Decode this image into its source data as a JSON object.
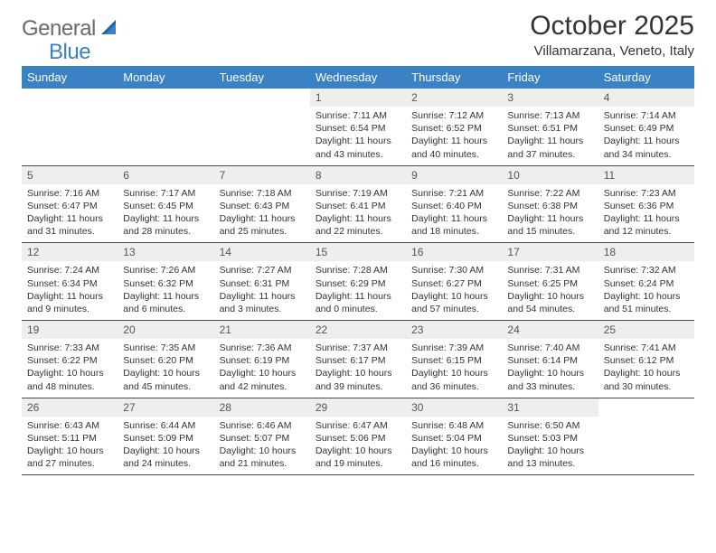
{
  "logo": {
    "general": "General",
    "blue": "Blue"
  },
  "title": "October 2025",
  "location": "Villamarzana, Veneto, Italy",
  "colors": {
    "header_bg": "#3a82c4",
    "header_fg": "#ffffff",
    "daynum_bg": "#eeeeee",
    "rule": "#4a4a4a",
    "page_bg": "#ffffff"
  },
  "weekdays": [
    "Sunday",
    "Monday",
    "Tuesday",
    "Wednesday",
    "Thursday",
    "Friday",
    "Saturday"
  ],
  "weeks": [
    [
      {
        "n": "",
        "sr": "",
        "ss": "",
        "dl1": "",
        "dl2": ""
      },
      {
        "n": "",
        "sr": "",
        "ss": "",
        "dl1": "",
        "dl2": ""
      },
      {
        "n": "",
        "sr": "",
        "ss": "",
        "dl1": "",
        "dl2": ""
      },
      {
        "n": "1",
        "sr": "Sunrise: 7:11 AM",
        "ss": "Sunset: 6:54 PM",
        "dl1": "Daylight: 11 hours",
        "dl2": "and 43 minutes."
      },
      {
        "n": "2",
        "sr": "Sunrise: 7:12 AM",
        "ss": "Sunset: 6:52 PM",
        "dl1": "Daylight: 11 hours",
        "dl2": "and 40 minutes."
      },
      {
        "n": "3",
        "sr": "Sunrise: 7:13 AM",
        "ss": "Sunset: 6:51 PM",
        "dl1": "Daylight: 11 hours",
        "dl2": "and 37 minutes."
      },
      {
        "n": "4",
        "sr": "Sunrise: 7:14 AM",
        "ss": "Sunset: 6:49 PM",
        "dl1": "Daylight: 11 hours",
        "dl2": "and 34 minutes."
      }
    ],
    [
      {
        "n": "5",
        "sr": "Sunrise: 7:16 AM",
        "ss": "Sunset: 6:47 PM",
        "dl1": "Daylight: 11 hours",
        "dl2": "and 31 minutes."
      },
      {
        "n": "6",
        "sr": "Sunrise: 7:17 AM",
        "ss": "Sunset: 6:45 PM",
        "dl1": "Daylight: 11 hours",
        "dl2": "and 28 minutes."
      },
      {
        "n": "7",
        "sr": "Sunrise: 7:18 AM",
        "ss": "Sunset: 6:43 PM",
        "dl1": "Daylight: 11 hours",
        "dl2": "and 25 minutes."
      },
      {
        "n": "8",
        "sr": "Sunrise: 7:19 AM",
        "ss": "Sunset: 6:41 PM",
        "dl1": "Daylight: 11 hours",
        "dl2": "and 22 minutes."
      },
      {
        "n": "9",
        "sr": "Sunrise: 7:21 AM",
        "ss": "Sunset: 6:40 PM",
        "dl1": "Daylight: 11 hours",
        "dl2": "and 18 minutes."
      },
      {
        "n": "10",
        "sr": "Sunrise: 7:22 AM",
        "ss": "Sunset: 6:38 PM",
        "dl1": "Daylight: 11 hours",
        "dl2": "and 15 minutes."
      },
      {
        "n": "11",
        "sr": "Sunrise: 7:23 AM",
        "ss": "Sunset: 6:36 PM",
        "dl1": "Daylight: 11 hours",
        "dl2": "and 12 minutes."
      }
    ],
    [
      {
        "n": "12",
        "sr": "Sunrise: 7:24 AM",
        "ss": "Sunset: 6:34 PM",
        "dl1": "Daylight: 11 hours",
        "dl2": "and 9 minutes."
      },
      {
        "n": "13",
        "sr": "Sunrise: 7:26 AM",
        "ss": "Sunset: 6:32 PM",
        "dl1": "Daylight: 11 hours",
        "dl2": "and 6 minutes."
      },
      {
        "n": "14",
        "sr": "Sunrise: 7:27 AM",
        "ss": "Sunset: 6:31 PM",
        "dl1": "Daylight: 11 hours",
        "dl2": "and 3 minutes."
      },
      {
        "n": "15",
        "sr": "Sunrise: 7:28 AM",
        "ss": "Sunset: 6:29 PM",
        "dl1": "Daylight: 11 hours",
        "dl2": "and 0 minutes."
      },
      {
        "n": "16",
        "sr": "Sunrise: 7:30 AM",
        "ss": "Sunset: 6:27 PM",
        "dl1": "Daylight: 10 hours",
        "dl2": "and 57 minutes."
      },
      {
        "n": "17",
        "sr": "Sunrise: 7:31 AM",
        "ss": "Sunset: 6:25 PM",
        "dl1": "Daylight: 10 hours",
        "dl2": "and 54 minutes."
      },
      {
        "n": "18",
        "sr": "Sunrise: 7:32 AM",
        "ss": "Sunset: 6:24 PM",
        "dl1": "Daylight: 10 hours",
        "dl2": "and 51 minutes."
      }
    ],
    [
      {
        "n": "19",
        "sr": "Sunrise: 7:33 AM",
        "ss": "Sunset: 6:22 PM",
        "dl1": "Daylight: 10 hours",
        "dl2": "and 48 minutes."
      },
      {
        "n": "20",
        "sr": "Sunrise: 7:35 AM",
        "ss": "Sunset: 6:20 PM",
        "dl1": "Daylight: 10 hours",
        "dl2": "and 45 minutes."
      },
      {
        "n": "21",
        "sr": "Sunrise: 7:36 AM",
        "ss": "Sunset: 6:19 PM",
        "dl1": "Daylight: 10 hours",
        "dl2": "and 42 minutes."
      },
      {
        "n": "22",
        "sr": "Sunrise: 7:37 AM",
        "ss": "Sunset: 6:17 PM",
        "dl1": "Daylight: 10 hours",
        "dl2": "and 39 minutes."
      },
      {
        "n": "23",
        "sr": "Sunrise: 7:39 AM",
        "ss": "Sunset: 6:15 PM",
        "dl1": "Daylight: 10 hours",
        "dl2": "and 36 minutes."
      },
      {
        "n": "24",
        "sr": "Sunrise: 7:40 AM",
        "ss": "Sunset: 6:14 PM",
        "dl1": "Daylight: 10 hours",
        "dl2": "and 33 minutes."
      },
      {
        "n": "25",
        "sr": "Sunrise: 7:41 AM",
        "ss": "Sunset: 6:12 PM",
        "dl1": "Daylight: 10 hours",
        "dl2": "and 30 minutes."
      }
    ],
    [
      {
        "n": "26",
        "sr": "Sunrise: 6:43 AM",
        "ss": "Sunset: 5:11 PM",
        "dl1": "Daylight: 10 hours",
        "dl2": "and 27 minutes."
      },
      {
        "n": "27",
        "sr": "Sunrise: 6:44 AM",
        "ss": "Sunset: 5:09 PM",
        "dl1": "Daylight: 10 hours",
        "dl2": "and 24 minutes."
      },
      {
        "n": "28",
        "sr": "Sunrise: 6:46 AM",
        "ss": "Sunset: 5:07 PM",
        "dl1": "Daylight: 10 hours",
        "dl2": "and 21 minutes."
      },
      {
        "n": "29",
        "sr": "Sunrise: 6:47 AM",
        "ss": "Sunset: 5:06 PM",
        "dl1": "Daylight: 10 hours",
        "dl2": "and 19 minutes."
      },
      {
        "n": "30",
        "sr": "Sunrise: 6:48 AM",
        "ss": "Sunset: 5:04 PM",
        "dl1": "Daylight: 10 hours",
        "dl2": "and 16 minutes."
      },
      {
        "n": "31",
        "sr": "Sunrise: 6:50 AM",
        "ss": "Sunset: 5:03 PM",
        "dl1": "Daylight: 10 hours",
        "dl2": "and 13 minutes."
      },
      {
        "n": "",
        "sr": "",
        "ss": "",
        "dl1": "",
        "dl2": ""
      }
    ]
  ]
}
